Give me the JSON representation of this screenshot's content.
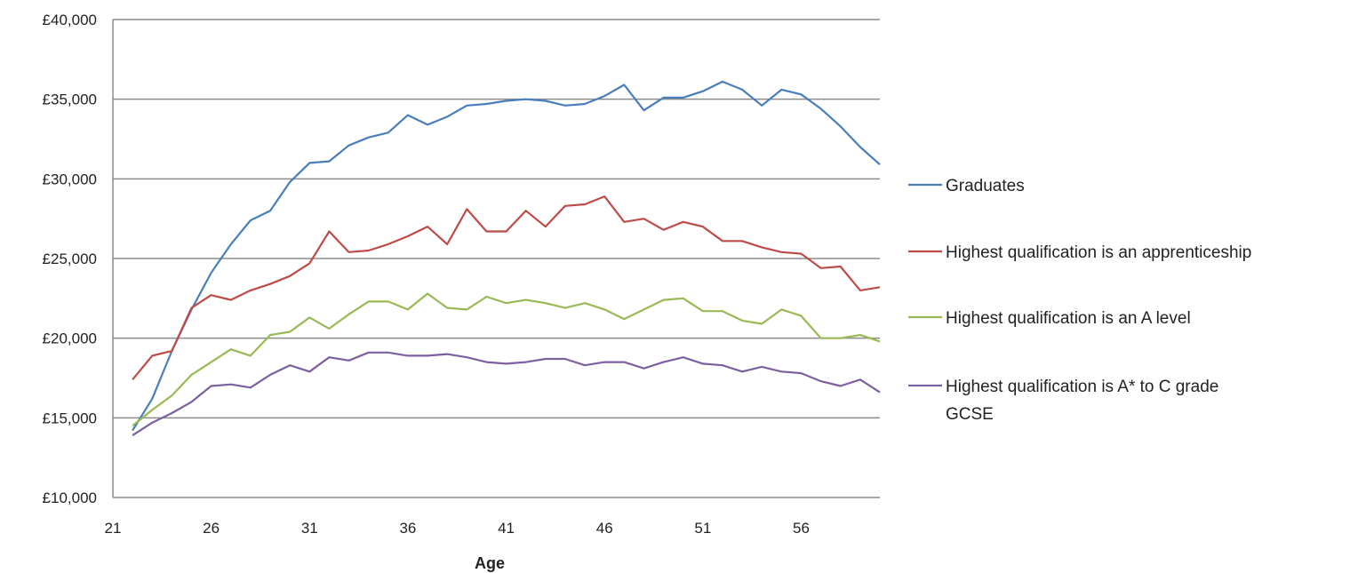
{
  "chart_data": {
    "type": "line",
    "title": "",
    "xlabel": "Age",
    "ylabel": "",
    "xlim": [
      21,
      60
    ],
    "ylim": [
      10000,
      40000
    ],
    "y_ticks": [
      10000,
      15000,
      20000,
      25000,
      30000,
      35000,
      40000
    ],
    "y_tick_labels": [
      "£10,000",
      "£15,000",
      "£20,000",
      "£25,000",
      "£30,000",
      "£35,000",
      "£40,000"
    ],
    "x_ticks": [
      21,
      26,
      31,
      36,
      41,
      46,
      51,
      56
    ],
    "x_tick_labels": [
      "21",
      "26",
      "31",
      "36",
      "41",
      "46",
      "51",
      "56"
    ],
    "grid": "horizontal",
    "legend_position": "right",
    "x": [
      22,
      23,
      24,
      25,
      26,
      27,
      28,
      29,
      30,
      31,
      32,
      33,
      34,
      35,
      36,
      37,
      38,
      39,
      40,
      41,
      42,
      43,
      44,
      45,
      46,
      47,
      48,
      49,
      50,
      51,
      52,
      53,
      54,
      55,
      56,
      57,
      58,
      59,
      60
    ],
    "series": [
      {
        "name": "Graduates",
        "color": "#4a7ebb",
        "values": [
          14200,
          16200,
          19200,
          21800,
          24100,
          25900,
          27400,
          28000,
          29800,
          31000,
          31100,
          32100,
          32600,
          32900,
          34000,
          33400,
          33900,
          34600,
          34700,
          34900,
          35000,
          34900,
          34600,
          34700,
          35200,
          35900,
          34300,
          35100,
          35100,
          35500,
          36100,
          35600,
          34600,
          35600,
          35300,
          34400,
          33300,
          32000,
          30900
        ]
      },
      {
        "name": "Highest qualification is an apprenticeship",
        "color": "#be4b48",
        "values": [
          17400,
          18900,
          19200,
          21900,
          22700,
          22400,
          23000,
          23400,
          23900,
          24700,
          26700,
          25400,
          25500,
          25900,
          26400,
          27000,
          25900,
          28100,
          26700,
          26700,
          28000,
          27000,
          28300,
          28400,
          28900,
          27300,
          27500,
          26800,
          27300,
          27000,
          26100,
          26100,
          25700,
          25400,
          25300,
          24400,
          24500,
          23000,
          23200
        ]
      },
      {
        "name": "Highest qualification is an A level",
        "color": "#98b954",
        "values": [
          14500,
          15500,
          16400,
          17700,
          18500,
          19300,
          18900,
          20200,
          20400,
          21300,
          20600,
          21500,
          22300,
          22300,
          21800,
          22800,
          21900,
          21800,
          22600,
          22200,
          22400,
          22200,
          21900,
          22200,
          21800,
          21200,
          21800,
          22400,
          22500,
          21700,
          21700,
          21100,
          20900,
          21800,
          21400,
          20000,
          20000,
          20200,
          19800
        ]
      },
      {
        "name": "Highest qualification is A* to C grade GCSE",
        "color": "#7d60a0",
        "values": [
          13900,
          14700,
          15300,
          16000,
          17000,
          17100,
          16900,
          17700,
          18300,
          17900,
          18800,
          18600,
          19100,
          19100,
          18900,
          18900,
          19000,
          18800,
          18500,
          18400,
          18500,
          18700,
          18700,
          18300,
          18500,
          18500,
          18100,
          18500,
          18800,
          18400,
          18300,
          17900,
          18200,
          17900,
          17800,
          17300,
          17000,
          17400,
          16600
        ]
      }
    ]
  }
}
